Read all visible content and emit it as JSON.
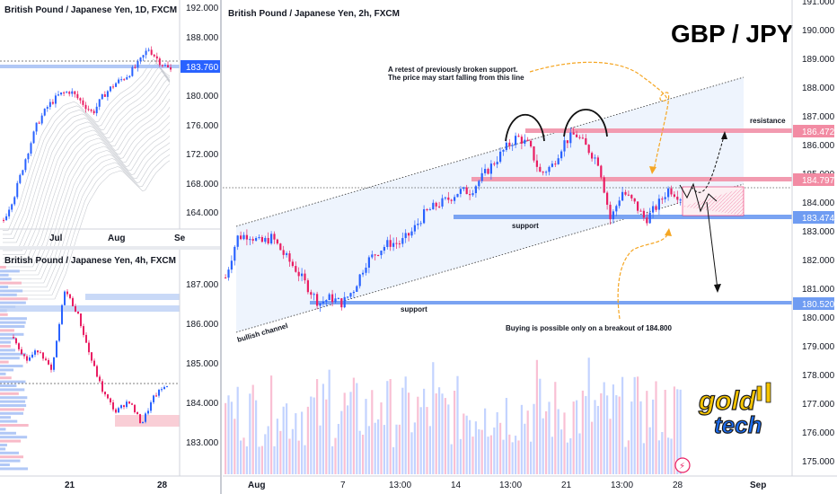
{
  "colors": {
    "up": "#2962ff",
    "down": "#e91e63",
    "resistance": "#f28ba3",
    "support": "#6f9cf2",
    "accent_orange": "#f5a623",
    "logo_yellow": "#f5c400",
    "logo_blue": "#1c6df2"
  },
  "panels": {
    "daily": {
      "title": "British Pound / Japanese Yen, 1D, FXCM",
      "y_ticks": [
        "192.000",
        "188.000",
        "184.000",
        "180.000",
        "176.000",
        "172.000",
        "168.000",
        "164.000"
      ],
      "price_tag": "183.760",
      "x_ticks": [
        "Jul",
        "Aug",
        "Se"
      ]
    },
    "h4": {
      "title": "British Pound / Japanese Yen, 4h, FXCM",
      "y_ticks": [
        "187.000",
        "186.000",
        "185.000",
        "184.000",
        "183.000"
      ],
      "x_ticks": [
        "21",
        "28"
      ]
    },
    "main": {
      "title": "British Pound / Japanese Yen, 2h, FXCM",
      "headline": "GBP / JPY",
      "y_ticks": [
        "191.000",
        "190.000",
        "189.000",
        "188.000",
        "187.000",
        "186.000",
        "185.000",
        "184.000",
        "183.000",
        "182.000",
        "181.000",
        "180.000",
        "179.000",
        "178.000",
        "177.000",
        "176.000",
        "175.000"
      ],
      "x_ticks": [
        "Aug",
        "7",
        "13:00",
        "14",
        "13:00",
        "21",
        "13:00",
        "28",
        "Sep"
      ],
      "price_tags": {
        "resistance_upper": "186.472",
        "resistance_lower": "184.797",
        "support_upper": "183.474",
        "support_lower": "180.520"
      },
      "annotations": {
        "retest_line1": "A retest of previously broken support.",
        "retest_line2": "The price may start falling from this line",
        "resistance": "resistance",
        "support_upper": "support",
        "support_lower": "support",
        "channel": "bullish channel",
        "breakout": "Buying is possible only on a breakout of 184.800"
      },
      "logo": {
        "line1": "gold",
        "line2": "tech"
      }
    }
  },
  "chart_data": [
    {
      "type": "line",
      "title": "British Pound / Japanese Yen, 1D, FXCM",
      "y_ticks": [
        192,
        188,
        184,
        180,
        176,
        172,
        168,
        164
      ],
      "x_ticks": [
        "Jul",
        "Aug",
        "Se"
      ],
      "last_price": 183.76,
      "series": [
        {
          "values": [
            163.5,
            167,
            172,
            176.5,
            179,
            180.5,
            181,
            179.5,
            178,
            180.5,
            182,
            183,
            184.5,
            186.8,
            185,
            183.8
          ]
        }
      ]
    },
    {
      "type": "line",
      "title": "British Pound / Japanese Yen, 4h, FXCM",
      "y_ticks": [
        187,
        186,
        185,
        184,
        183
      ],
      "x_ticks": [
        "21",
        "28"
      ],
      "series": [
        {
          "values": [
            185.7,
            185.1,
            185.4,
            184.8,
            186.9,
            186.3,
            185.2,
            184.3,
            183.8,
            184.1,
            183.5,
            184.2,
            184.5
          ]
        }
      ]
    },
    {
      "type": "line",
      "title": "British Pound / Japanese Yen, 2h, FXCM",
      "y_ticks": [
        191,
        190,
        189,
        188,
        187,
        186,
        185,
        184,
        183,
        182,
        181,
        180,
        179,
        178,
        177,
        176,
        175
      ],
      "x_ticks": [
        "Aug",
        "7",
        "13:00",
        "14",
        "13:00",
        "21",
        "13:00",
        "28",
        "Sep"
      ],
      "levels": [
        186.472,
        184.797,
        183.474,
        180.52
      ],
      "series": [
        {
          "values": [
            181.5,
            182.9,
            183.0,
            182.7,
            182.9,
            182.3,
            181.8,
            181.2,
            180.6,
            180.8,
            180.6,
            181.1,
            182.0,
            182.4,
            182.7,
            182.7,
            183.1,
            183.7,
            184.0,
            184.2,
            184.5,
            184.5,
            185.0,
            185.5,
            186.0,
            186.4,
            186.1,
            185.1,
            185.4,
            186.2,
            186.5,
            186.0,
            185.5,
            183.5,
            184.5,
            184.1,
            183.5,
            184.0,
            184.6,
            184.3
          ]
        }
      ]
    }
  ]
}
